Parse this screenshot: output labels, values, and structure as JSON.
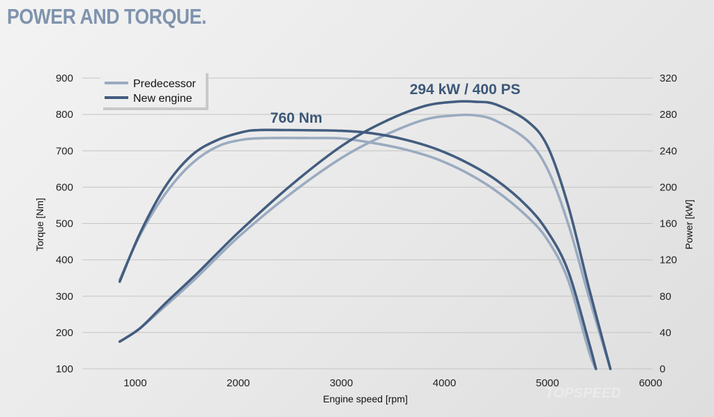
{
  "chart_data": {
    "type": "line",
    "title": "POWER AND TORQUE.",
    "xlabel": "Engine speed [rpm]",
    "ylabel_left": "Torque [Nm]",
    "ylabel_right": "Power [kW]",
    "xlim": [
      500,
      6000
    ],
    "ylim_left": [
      100,
      900
    ],
    "ylim_right": [
      0,
      320
    ],
    "x_ticks": [
      "1000",
      "2000",
      "3000",
      "4000",
      "5000",
      "6000"
    ],
    "y_ticks_left": [
      "900",
      "800",
      "700",
      "600",
      "500",
      "400",
      "300",
      "200",
      "100"
    ],
    "y_ticks_right": [
      "320",
      "280",
      "240",
      "200",
      "160",
      "120",
      "80",
      "40",
      "0"
    ],
    "grid": true,
    "legend_position": "top-left",
    "colors": {
      "predecessor": "#9aabc0",
      "new_engine": "#435d7f"
    },
    "series": [
      {
        "name": "Predecessor",
        "axis": "left",
        "metric": "torque",
        "x": [
          850,
          1050,
          1300,
          1550,
          1800,
          2050,
          2300,
          2700,
          3000,
          3300,
          3600,
          3900,
          4200,
          4500,
          4800,
          5000,
          5200,
          5400,
          5470
        ],
        "y": [
          345,
          470,
          585,
          665,
          712,
          731,
          735,
          735,
          734,
          722,
          705,
          680,
          642,
          590,
          520,
          455,
          345,
          150,
          100
        ]
      },
      {
        "name": "New engine",
        "axis": "left",
        "metric": "torque",
        "x": [
          850,
          1050,
          1300,
          1550,
          1800,
          2050,
          2200,
          2500,
          3000,
          3300,
          3600,
          3900,
          4200,
          4500,
          4800,
          5000,
          5200,
          5400,
          5470
        ],
        "y": [
          340,
          475,
          605,
          688,
          730,
          752,
          757,
          757,
          755,
          748,
          732,
          707,
          670,
          620,
          548,
          478,
          370,
          175,
          100
        ]
      },
      {
        "name": "Predecessor",
        "axis": "right",
        "metric": "power",
        "x": [
          850,
          1050,
          1300,
          1600,
          2000,
          2500,
          3000,
          3400,
          3800,
          4100,
          4300,
          4500,
          4800,
          5000,
          5200,
          5400,
          5610
        ],
        "y": [
          30,
          45,
          70,
          101,
          145,
          192,
          232,
          256,
          274,
          279,
          279,
          273,
          252,
          220,
          160,
          80,
          0
        ]
      },
      {
        "name": "New engine",
        "axis": "right",
        "metric": "power",
        "x": [
          850,
          1050,
          1300,
          1600,
          2000,
          2500,
          3000,
          3400,
          3800,
          4100,
          4300,
          4500,
          4800,
          5000,
          5200,
          5400,
          5610
        ],
        "y": [
          30,
          45,
          73,
          105,
          150,
          201,
          245,
          271,
          289,
          294,
          294,
          291,
          273,
          245,
          180,
          90,
          0
        ]
      }
    ],
    "annotations": {
      "torque_peak": "760 Nm",
      "power_peak": "294 kW / 400 PS"
    },
    "watermark": "TOPSPEED"
  }
}
